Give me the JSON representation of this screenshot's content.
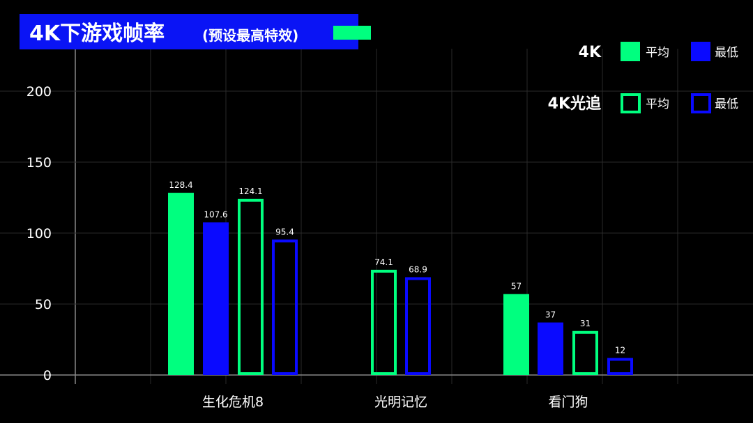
{
  "title": "4K下游戏帧率",
  "subtitle": "(预设最高特效)",
  "colors": {
    "background": "#000000",
    "title_bar": "#0a14f5",
    "green": "#00ff7f",
    "blue": "#0a0aff",
    "grid": "#2a2a2a",
    "axis": "#888888"
  },
  "legend": {
    "placement": "top-right",
    "groups": [
      {
        "label": "4K",
        "style": "filled",
        "items": [
          "平均",
          "最低"
        ]
      },
      {
        "label": "4K光追",
        "style": "outline",
        "items": [
          "平均",
          "最低"
        ]
      }
    ]
  },
  "chart_data": {
    "type": "bar",
    "categories": [
      "生化危机8",
      "光明记忆",
      "看门狗"
    ],
    "series": [
      {
        "group": "4K",
        "item": "平均",
        "style": "filled",
        "color": "#00ff7f",
        "values": [
          128.4,
          null,
          57
        ]
      },
      {
        "group": "4K",
        "item": "最低",
        "style": "filled",
        "color": "#0a0aff",
        "values": [
          107.6,
          null,
          37
        ]
      },
      {
        "group": "4K光追",
        "item": "平均",
        "style": "outline",
        "color": "#00ff7f",
        "values": [
          124.1,
          74.1,
          31
        ]
      },
      {
        "group": "4K光追",
        "item": "最低",
        "style": "outline",
        "color": "#0a0aff",
        "values": [
          95.4,
          68.9,
          12
        ]
      }
    ],
    "data_labels": [
      [
        "128.4",
        null,
        "57"
      ],
      [
        "107.6",
        null,
        "37"
      ],
      [
        "124.1",
        "74.1",
        "31"
      ],
      [
        "95.4",
        "68.9",
        "12"
      ]
    ],
    "y_ticks": [
      "0",
      "50",
      "100",
      "150",
      "200"
    ],
    "ylim": [
      0,
      230
    ],
    "grid": true
  }
}
